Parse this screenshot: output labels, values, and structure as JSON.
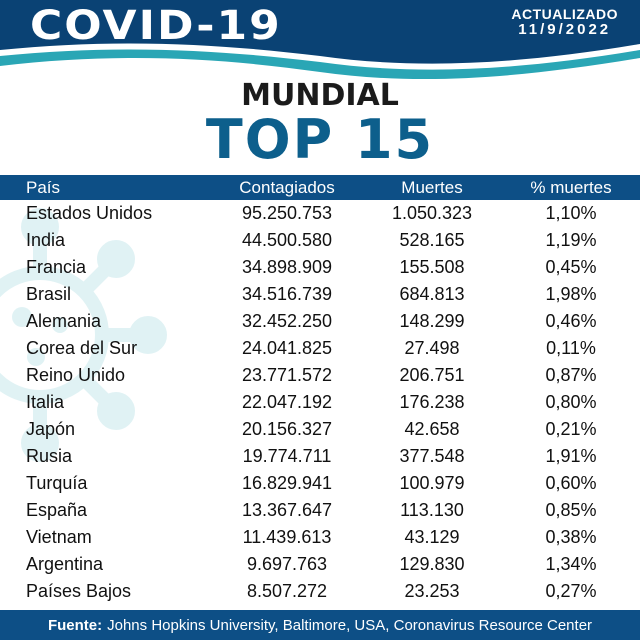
{
  "header": {
    "title": "COVID-19",
    "updated_label": "ACTUALIZADO",
    "updated_date": "11/9/2022"
  },
  "heading": {
    "region": "MUNDIAL",
    "subtitle": "TOP 15"
  },
  "table": {
    "columns": [
      "País",
      "Contagiados",
      "Muertes",
      "% muertes"
    ],
    "rows": [
      [
        "Estados Unidos",
        "95.250.753",
        "1.050.323",
        "1,10%"
      ],
      [
        "India",
        "44.500.580",
        "528.165",
        "1,19%"
      ],
      [
        "Francia",
        "34.898.909",
        "155.508",
        "0,45%"
      ],
      [
        "Brasil",
        "34.516.739",
        "684.813",
        "1,98%"
      ],
      [
        "Alemania",
        "32.452.250",
        "148.299",
        "0,46%"
      ],
      [
        "Corea del Sur",
        "24.041.825",
        "27.498",
        "0,11%"
      ],
      [
        "Reino Unido",
        "23.771.572",
        "206.751",
        "0,87%"
      ],
      [
        "Italia",
        "22.047.192",
        "176.238",
        "0,80%"
      ],
      [
        "Japón",
        "20.156.327",
        "42.658",
        "0,21%"
      ],
      [
        "Rusia",
        "19.774.711",
        "377.548",
        "1,91%"
      ],
      [
        "Turquía",
        "16.829.941",
        "100.979",
        "0,60%"
      ],
      [
        "España",
        "13.367.647",
        "113.130",
        "0,85%"
      ],
      [
        "Vietnam",
        "11.439.613",
        "43.129",
        "0,38%"
      ],
      [
        "Argentina",
        "9.697.763",
        "129.830",
        "1,34%"
      ],
      [
        "Países Bajos",
        "8.507.272",
        "23.253",
        "0,27%"
      ]
    ]
  },
  "footer": {
    "source_label": "Fuente:",
    "source_text": "Johns Hopkins University, Baltimore, USA, Coronavirus Resource Center"
  },
  "colors": {
    "header_dark": "#0a4274",
    "header_wave": "#2aa6b5",
    "accent": "#0d5f8c",
    "table_header": "#0d4f86",
    "virus_watermark": "#5fb3bd"
  }
}
